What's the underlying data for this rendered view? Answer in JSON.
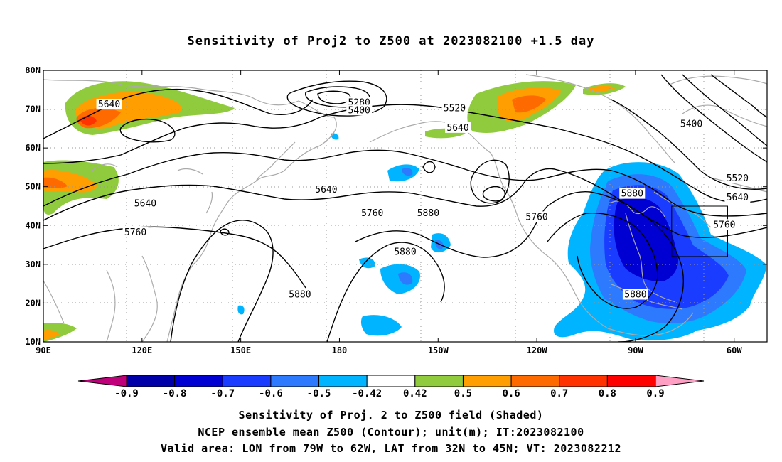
{
  "title": "Sensitivity of Proj2 to Z500 at 2023082100 +1.5 day",
  "map": {
    "lat_labels": [
      "80N",
      "70N",
      "60N",
      "50N",
      "40N",
      "30N",
      "20N",
      "10N"
    ],
    "lon_labels": [
      "90E",
      "120E",
      "150E",
      "180",
      "150W",
      "120W",
      "90W",
      "60W"
    ],
    "lon_range": [
      90,
      310
    ],
    "lat_range": [
      10,
      80
    ],
    "grid": "dotted"
  },
  "contour_labels": [
    {
      "text": "5640",
      "lon": 110,
      "lat": 71
    },
    {
      "text": "5640",
      "lon": 121,
      "lat": 45.5
    },
    {
      "text": "5760",
      "lon": 118,
      "lat": 38
    },
    {
      "text": "5640",
      "lon": 176,
      "lat": 49
    },
    {
      "text": "5760",
      "lon": 190,
      "lat": 43
    },
    {
      "text": "5880",
      "lon": 207,
      "lat": 43
    },
    {
      "text": "5880",
      "lon": 168,
      "lat": 22
    },
    {
      "text": "5880",
      "lon": 200,
      "lat": 33
    },
    {
      "text": "5280",
      "lon": 186,
      "lat": 71.5
    },
    {
      "text": "5400",
      "lon": 186,
      "lat": 69.5
    },
    {
      "text": "5520",
      "lon": 215,
      "lat": 70
    },
    {
      "text": "5640",
      "lon": 216,
      "lat": 65
    },
    {
      "text": "5400",
      "lon": 287,
      "lat": 66
    },
    {
      "text": "5760",
      "lon": 240,
      "lat": 42
    },
    {
      "text": "5880",
      "lon": 269,
      "lat": 48
    },
    {
      "text": "5520",
      "lon": 301,
      "lat": 52
    },
    {
      "text": "5640",
      "lon": 301,
      "lat": 47
    },
    {
      "text": "5760",
      "lon": 297,
      "lat": 40
    },
    {
      "text": "5880",
      "lon": 270,
      "lat": 22
    }
  ],
  "valid_area_box": {
    "lon_west": 281,
    "lon_east": 298,
    "lat_south": 32,
    "lat_north": 45
  },
  "colorbar": {
    "labels": [
      "-0.9",
      "-0.8",
      "-0.7",
      "-0.6",
      "-0.5",
      "-0.42",
      "0.42",
      "0.5",
      "0.6",
      "0.7",
      "0.8",
      "0.9"
    ],
    "colors": [
      "#c0007a",
      "#0000a8",
      "#0000d2",
      "#1a3cff",
      "#2e7aff",
      "#00b4ff",
      "#ffffff",
      "#8fcb3c",
      "#ff9e00",
      "#ff6a00",
      "#ff3200",
      "#ff0000",
      "#ff9fc4"
    ]
  },
  "shading_colors": {
    "green": "#8fcb3c",
    "orange": "#ff9e00",
    "dark_orange": "#ff6a00",
    "red": "#ff3200",
    "light_blue": "#00b4ff",
    "mid_blue": "#2e7aff",
    "blue": "#1a3cff",
    "dark_blue": "#0000d2"
  },
  "captions": [
    "Sensitivity of Proj. 2 to Z500 field (Shaded)",
    "NCEP ensemble mean Z500 (Contour); unit(m); IT:2023082100",
    "Valid area: LON from 79W to 62W, LAT from 32N to 45N; VT: 2023082212"
  ]
}
